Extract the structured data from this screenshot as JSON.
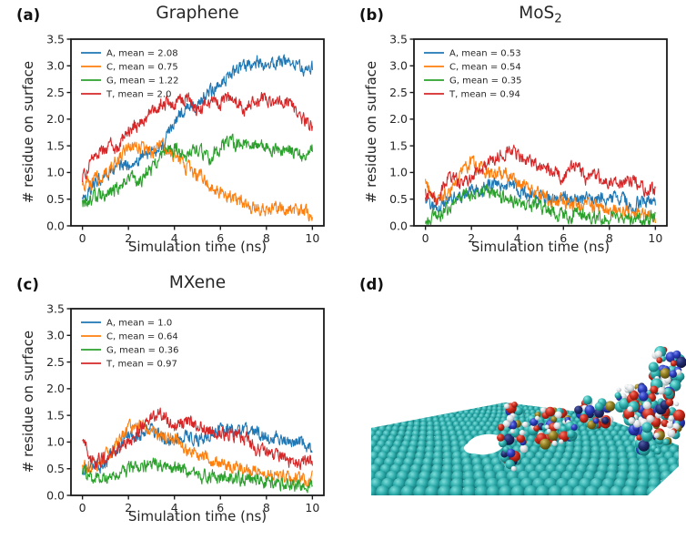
{
  "figure": {
    "background": "#ffffff",
    "panels": [
      {
        "label": "(a)",
        "title": "Graphene",
        "title_sub": ""
      },
      {
        "label": "(b)",
        "title": "MoS",
        "title_sub": "2"
      },
      {
        "label": "(c)",
        "title": "MXene",
        "title_sub": ""
      },
      {
        "label": "(d)",
        "title": "",
        "title_sub": ""
      }
    ]
  },
  "chart_data": [
    {
      "type": "line",
      "panel": "a",
      "title": "Graphene",
      "xlabel": "Simulation time (ns)",
      "ylabel": "# residue on surface",
      "xlim": [
        0,
        10
      ],
      "ylim": [
        0,
        3.5
      ],
      "xticks": [
        0,
        2,
        4,
        6,
        8,
        10
      ],
      "yticks": [
        0,
        0.5,
        1,
        1.5,
        2,
        2.5,
        3,
        3.5
      ],
      "grid": false,
      "legend_position": "upper left",
      "x": [
        0,
        0.5,
        1,
        1.5,
        2,
        2.5,
        3,
        3.5,
        4,
        4.5,
        5,
        5.5,
        6,
        6.5,
        7,
        7.5,
        8,
        8.5,
        9,
        9.5,
        10
      ],
      "series": [
        {
          "name": "A, mean = 2.08",
          "mean": 2.08,
          "color": "#1f77b4",
          "values": [
            0.5,
            0.85,
            0.95,
            1.05,
            1.2,
            1.3,
            1.4,
            1.55,
            1.95,
            2.2,
            2.3,
            2.5,
            2.65,
            2.85,
            3.0,
            3.1,
            3.0,
            3.1,
            3.1,
            2.95,
            2.95
          ]
        },
        {
          "name": "C, mean = 0.75",
          "mean": 0.75,
          "color": "#ff7f0e",
          "values": [
            0.7,
            0.85,
            1.0,
            1.2,
            1.45,
            1.5,
            1.4,
            1.5,
            1.3,
            1.1,
            0.95,
            0.8,
            0.65,
            0.5,
            0.4,
            0.35,
            0.3,
            0.3,
            0.32,
            0.3,
            0.22
          ]
        },
        {
          "name": "G, mean = 1.22",
          "mean": 1.22,
          "color": "#2ca02c",
          "values": [
            0.4,
            0.55,
            0.6,
            0.7,
            0.95,
            0.85,
            1.05,
            1.4,
            1.45,
            1.3,
            1.45,
            1.25,
            1.5,
            1.55,
            1.5,
            1.55,
            1.45,
            1.4,
            1.45,
            1.3,
            1.45
          ]
        },
        {
          "name": "T, mean = 2.0",
          "mean": 2.0,
          "color": "#d62728",
          "values": [
            0.9,
            1.3,
            1.45,
            1.5,
            1.75,
            1.95,
            2.1,
            2.3,
            2.25,
            2.4,
            2.2,
            2.3,
            2.3,
            2.4,
            2.2,
            2.35,
            2.4,
            2.3,
            2.35,
            2.0,
            1.85
          ]
        }
      ]
    },
    {
      "type": "line",
      "panel": "b",
      "title": "MoS₂",
      "xlabel": "Simulation time (ns)",
      "ylabel": "# residue on surface",
      "xlim": [
        0,
        10
      ],
      "ylim": [
        0,
        3.5
      ],
      "xticks": [
        0,
        2,
        4,
        6,
        8,
        10
      ],
      "yticks": [
        0,
        0.5,
        1,
        1.5,
        2,
        2.5,
        3,
        3.5
      ],
      "grid": false,
      "legend_position": "upper left",
      "x": [
        0,
        0.5,
        1,
        1.5,
        2,
        2.5,
        3,
        3.5,
        4,
        4.5,
        5,
        5.5,
        6,
        6.5,
        7,
        7.5,
        8,
        8.5,
        9,
        9.5,
        10
      ],
      "series": [
        {
          "name": "A, mean = 0.53",
          "mean": 0.53,
          "color": "#1f77b4",
          "values": [
            0.45,
            0.3,
            0.5,
            0.55,
            0.6,
            0.7,
            0.8,
            0.75,
            0.7,
            0.6,
            0.55,
            0.5,
            0.5,
            0.45,
            0.55,
            0.5,
            0.45,
            0.55,
            0.4,
            0.45,
            0.4
          ]
        },
        {
          "name": "C, mean = 0.54",
          "mean": 0.54,
          "color": "#ff7f0e",
          "values": [
            0.8,
            0.5,
            0.6,
            0.9,
            1.2,
            1.05,
            0.95,
            1.0,
            0.8,
            0.7,
            0.55,
            0.5,
            0.45,
            0.4,
            0.4,
            0.35,
            0.3,
            0.3,
            0.25,
            0.2,
            0.15
          ]
        },
        {
          "name": "G, mean = 0.35",
          "mean": 0.35,
          "color": "#2ca02c",
          "values": [
            0.1,
            0.2,
            0.3,
            0.5,
            0.6,
            0.7,
            0.55,
            0.5,
            0.45,
            0.4,
            0.35,
            0.25,
            0.2,
            0.2,
            0.2,
            0.15,
            0.15,
            0.15,
            0.15,
            0.1,
            0.2
          ]
        },
        {
          "name": "T, mean = 0.94",
          "mean": 0.94,
          "color": "#d62728",
          "values": [
            0.6,
            0.45,
            0.95,
            0.8,
            0.9,
            1.1,
            1.3,
            1.4,
            1.35,
            1.2,
            1.1,
            1.0,
            0.9,
            1.1,
            0.9,
            0.95,
            0.85,
            0.8,
            0.85,
            0.7,
            0.7
          ]
        }
      ]
    },
    {
      "type": "line",
      "panel": "c",
      "title": "MXene",
      "xlabel": "Simulation time (ns)",
      "ylabel": "# residue on surface",
      "xlim": [
        0,
        10
      ],
      "ylim": [
        0,
        3.5
      ],
      "xticks": [
        0,
        2,
        4,
        6,
        8,
        10
      ],
      "yticks": [
        0,
        0.5,
        1,
        1.5,
        2,
        2.5,
        3,
        3.5
      ],
      "grid": false,
      "legend_position": "upper left",
      "x": [
        0,
        0.5,
        1,
        1.5,
        2,
        2.5,
        3,
        3.5,
        4,
        4.5,
        5,
        5.5,
        6,
        6.5,
        7,
        7.5,
        8,
        8.5,
        9,
        9.5,
        10
      ],
      "series": [
        {
          "name": "A, mean = 1.0",
          "mean": 1.0,
          "color": "#1f77b4",
          "values": [
            0.45,
            0.5,
            0.6,
            0.9,
            1.1,
            1.15,
            1.2,
            1.1,
            1.05,
            1.1,
            1.05,
            1.1,
            1.25,
            1.25,
            1.2,
            1.15,
            1.1,
            1.05,
            1.0,
            1.0,
            0.85
          ]
        },
        {
          "name": "C, mean = 0.64",
          "mean": 0.64,
          "color": "#ff7f0e",
          "values": [
            0.5,
            0.55,
            0.7,
            1.0,
            1.3,
            1.3,
            1.25,
            1.15,
            1.05,
            0.9,
            0.75,
            0.7,
            0.6,
            0.55,
            0.5,
            0.45,
            0.4,
            0.35,
            0.3,
            0.3,
            0.3
          ]
        },
        {
          "name": "G, mean = 0.36",
          "mean": 0.36,
          "color": "#2ca02c",
          "values": [
            0.45,
            0.3,
            0.35,
            0.4,
            0.5,
            0.55,
            0.6,
            0.55,
            0.5,
            0.45,
            0.4,
            0.35,
            0.35,
            0.3,
            0.3,
            0.3,
            0.25,
            0.2,
            0.2,
            0.15,
            0.2
          ]
        },
        {
          "name": "T, mean = 0.97",
          "mean": 0.97,
          "color": "#d62728",
          "values": [
            1.0,
            0.6,
            0.7,
            0.8,
            1.0,
            1.25,
            1.45,
            1.5,
            1.3,
            1.4,
            1.3,
            1.25,
            1.2,
            1.15,
            1.1,
            0.9,
            0.8,
            0.75,
            0.65,
            0.6,
            0.65
          ]
        }
      ]
    }
  ],
  "snapshot": {
    "panel": "d",
    "type": "molecular-render",
    "surface_color": "#2aa9a8",
    "hole_color": "#ffffff",
    "atom_colors": {
      "cyan": "#2fb0ae",
      "red": "#cf2c1e",
      "blue": "#2e3ec0",
      "white": "#e2e6e8",
      "tan": "#8f7d22",
      "navy": "#232c6e"
    }
  }
}
